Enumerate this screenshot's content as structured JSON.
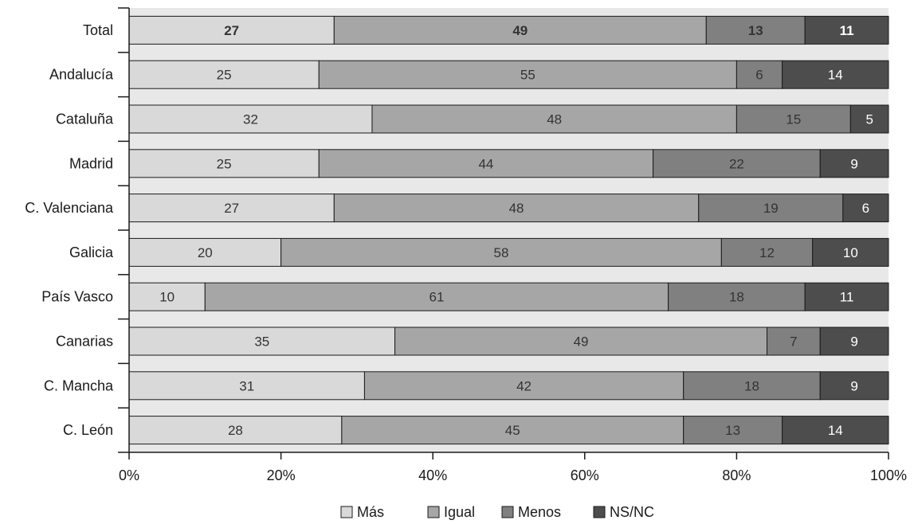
{
  "chart_data": {
    "type": "bar",
    "orientation": "horizontal",
    "stacked": true,
    "percent_stacked": true,
    "title": "",
    "xlabel": "",
    "ylabel": "",
    "xlim": [
      0,
      100
    ],
    "x_ticks": [
      "0%",
      "20%",
      "40%",
      "60%",
      "80%",
      "100%"
    ],
    "grid": false,
    "legend_position": "bottom",
    "categories": [
      "Total",
      "Andalucía",
      "Cataluña",
      "Madrid",
      "C. Valenciana",
      "Galicia",
      "País Vasco",
      "Canarias",
      "C. Mancha",
      "C. León"
    ],
    "bold_categories": [
      "Total"
    ],
    "series": [
      {
        "name": "Más",
        "color": "#d9d9d9",
        "label_color": "#333333",
        "values": [
          27,
          25,
          32,
          25,
          27,
          20,
          10,
          35,
          31,
          28
        ]
      },
      {
        "name": "Igual",
        "color": "#a6a6a6",
        "label_color": "#333333",
        "values": [
          49,
          55,
          48,
          44,
          48,
          58,
          61,
          49,
          42,
          45
        ]
      },
      {
        "name": "Menos",
        "color": "#808080",
        "label_color": "#333333",
        "values": [
          13,
          6,
          15,
          22,
          19,
          12,
          18,
          7,
          18,
          13
        ]
      },
      {
        "name": "NS/NC",
        "color": "#4d4d4d",
        "label_color": "#ffffff",
        "values": [
          11,
          14,
          5,
          9,
          6,
          10,
          11,
          9,
          9,
          14
        ]
      }
    ],
    "background_color": "#e8e8e8",
    "border_color": "#1a1a1a"
  }
}
